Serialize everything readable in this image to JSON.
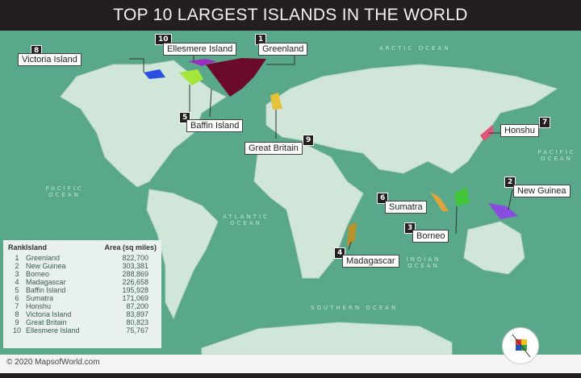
{
  "title": "TOP 10 LARGEST ISLANDS IN THE WORLD",
  "oceans": [
    "ARCTIC OCEAN",
    "PACIFIC OCEAN",
    "PACIFIC OCEAN",
    "ATLANTIC OCEAN",
    "INDIAN OCEAN",
    "SOUTHERN OCEAN"
  ],
  "labels": [
    {
      "rank": "1",
      "name": "Greenland",
      "color": "#6b0a2a"
    },
    {
      "rank": "2",
      "name": "New Guinea",
      "color": "#8a4be0"
    },
    {
      "rank": "3",
      "name": "Borneo",
      "color": "#3fc43a"
    },
    {
      "rank": "4",
      "name": "Madagascar",
      "color": "#b8922a"
    },
    {
      "rank": "5",
      "name": "Baffin Island",
      "color": "#a4e63a"
    },
    {
      "rank": "6",
      "name": "Sumatra",
      "color": "#e2a43a"
    },
    {
      "rank": "7",
      "name": "Honshu",
      "color": "#e0557a"
    },
    {
      "rank": "8",
      "name": "Victoria Island",
      "color": "#2a4ee0"
    },
    {
      "rank": "9",
      "name": "Great Britain",
      "color": "#e5c23a"
    },
    {
      "rank": "10",
      "name": "Ellesmere Island",
      "color": "#9a2ec0"
    }
  ],
  "table": {
    "headers": [
      "Rank",
      "Island",
      "Area (sq miles)"
    ],
    "rows": [
      [
        "1",
        "Greenland",
        "822,700"
      ],
      [
        "2",
        "New Guinea",
        "303,381"
      ],
      [
        "3",
        "Borneo",
        "288,869"
      ],
      [
        "4",
        "Madagascar",
        "226,658"
      ],
      [
        "5",
        "Baffin Island",
        "195,928"
      ],
      [
        "6",
        "Sumatra",
        "171,069"
      ],
      [
        "7",
        "Honshu",
        "87,200"
      ],
      [
        "8",
        "Victoria Island",
        "83,897"
      ],
      [
        "9",
        "Great Britain",
        "80,823"
      ],
      [
        "10",
        "Ellesmere Island",
        "75,767"
      ]
    ]
  },
  "footer": {
    "copyright": "© 2020 MapsofWorld.com"
  }
}
